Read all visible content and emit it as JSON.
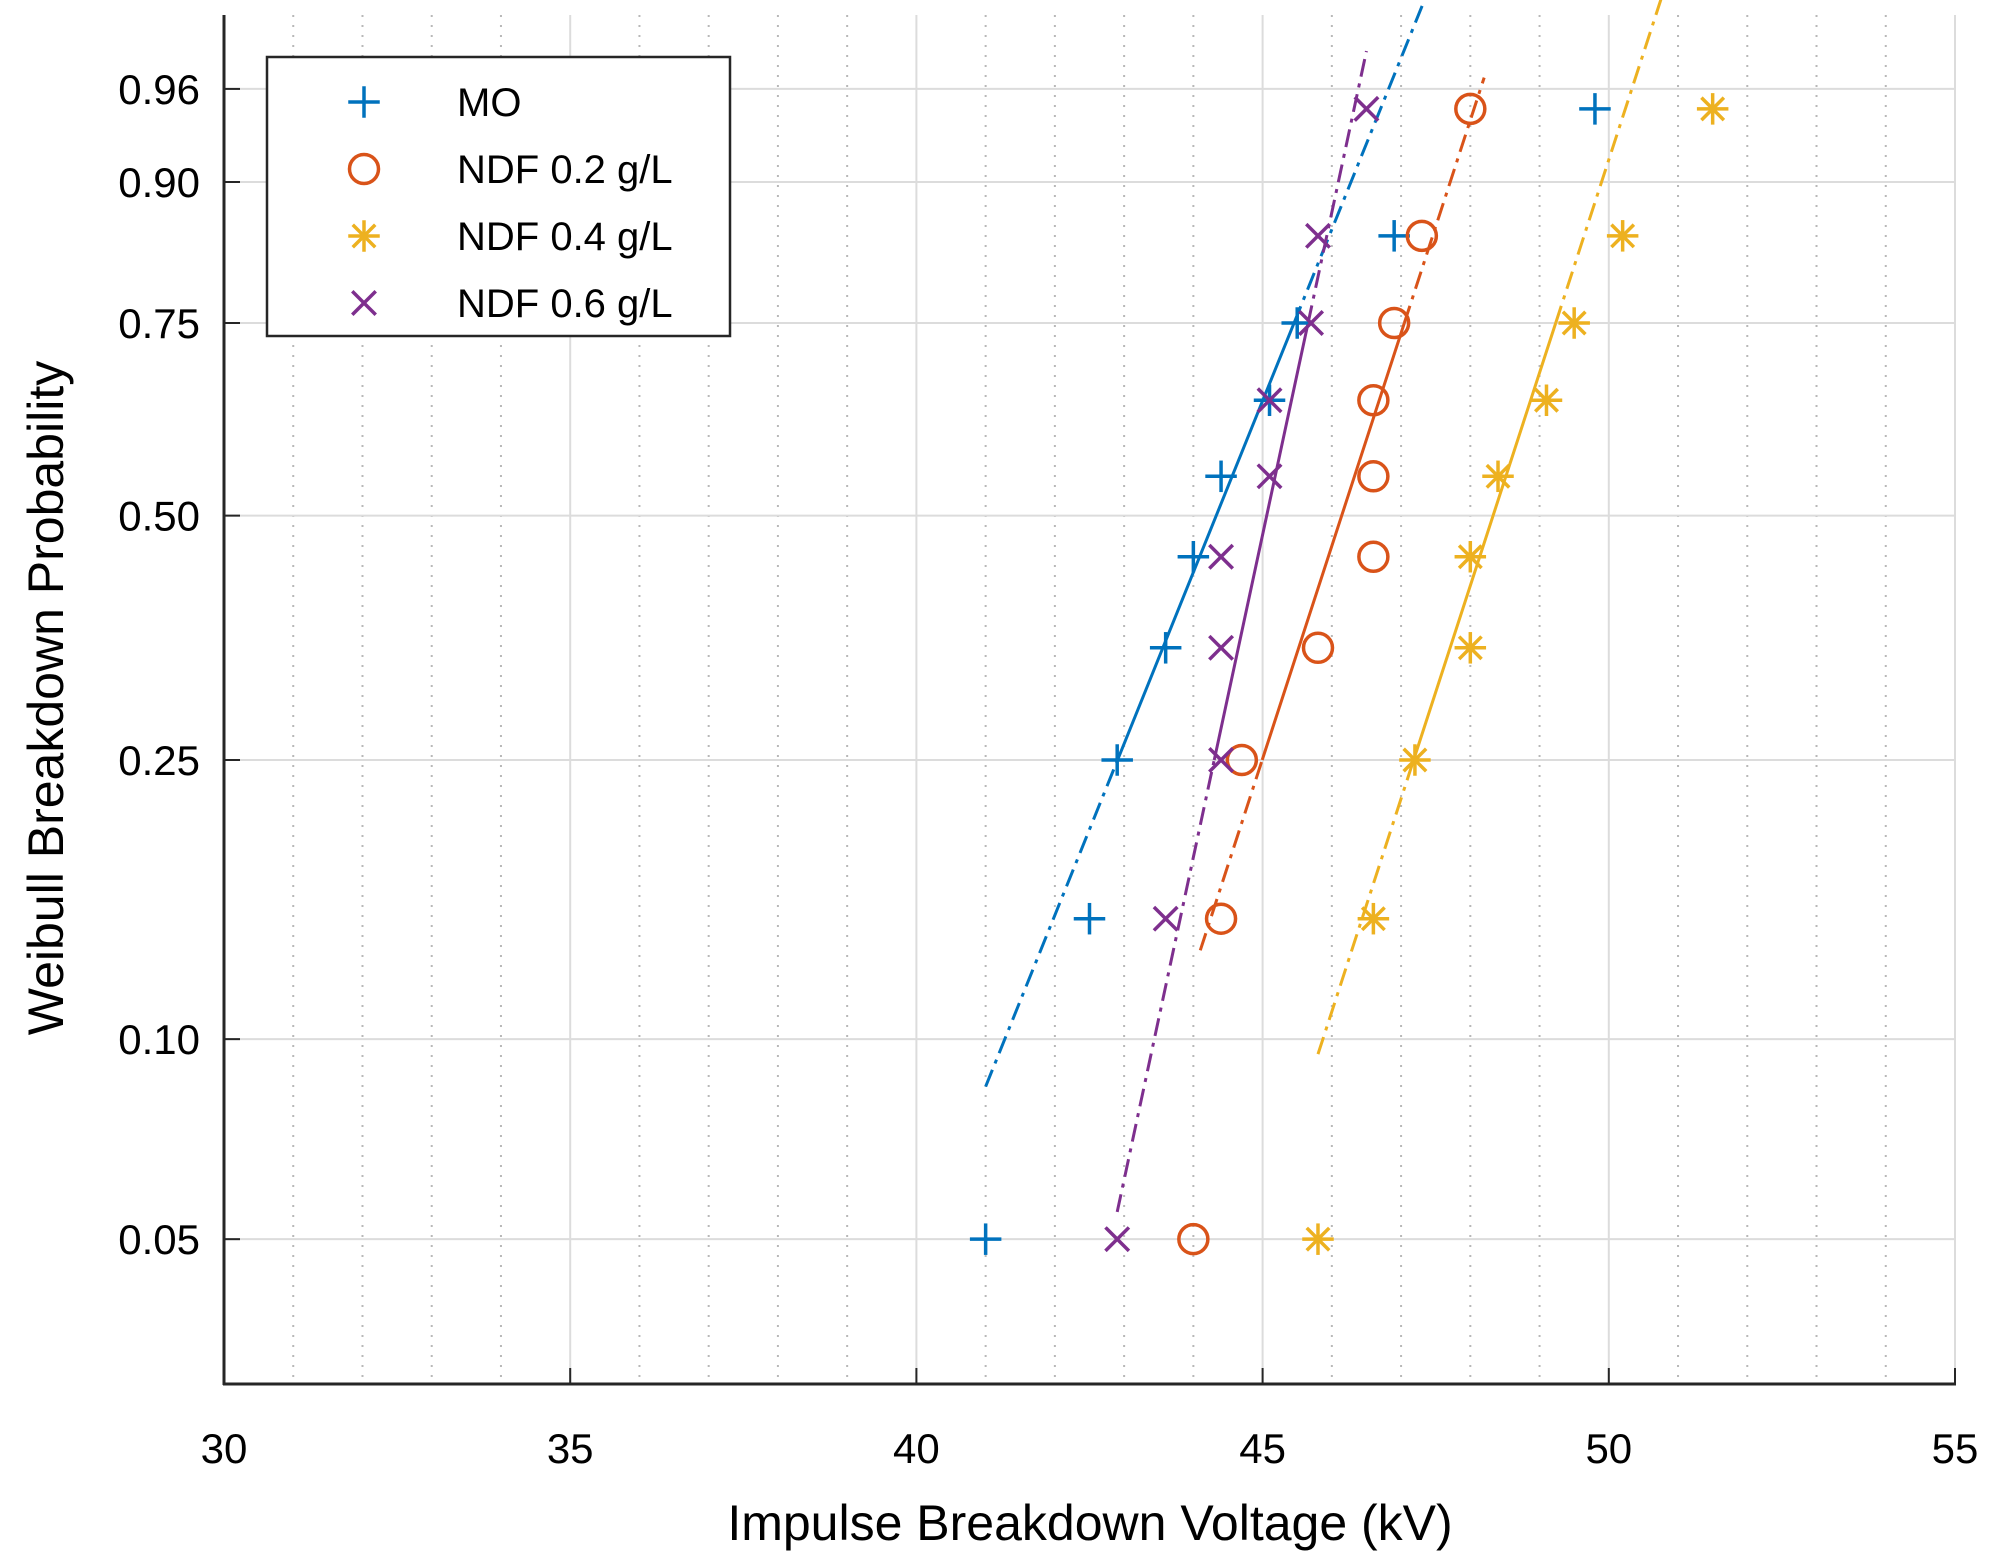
{
  "chart_data": {
    "type": "scatter",
    "title": "",
    "xlabel": "Impulse Breakdown Voltage (kV)",
    "ylabel": "Weibull Breakdown Probability",
    "xlim": [
      30,
      55
    ],
    "x_ticks": [
      30,
      35,
      40,
      45,
      50,
      55
    ],
    "x_minor_grid": [
      31,
      32,
      33,
      34,
      36,
      37,
      38,
      39,
      41,
      42,
      43,
      44,
      46,
      47,
      48,
      49,
      51,
      52,
      53,
      54
    ],
    "y_scale": "weibull",
    "ylim": [
      0.03,
      0.985
    ],
    "y_ticks": [
      0.05,
      0.1,
      0.25,
      0.5,
      0.75,
      0.9,
      0.96
    ],
    "y_tick_labels": [
      "0.05",
      "0.10",
      "0.25",
      "0.50",
      "0.75",
      "0.90",
      "0.96"
    ],
    "grid": true,
    "legend_position": "top-left",
    "series": [
      {
        "name": "MO",
        "color": "#0072BD",
        "marker": "plus",
        "points": [
          [
            41.0,
            0.05
          ],
          [
            42.5,
            0.15
          ],
          [
            42.9,
            0.25
          ],
          [
            43.6,
            0.35
          ],
          [
            44.0,
            0.45
          ],
          [
            44.4,
            0.55
          ],
          [
            45.1,
            0.65
          ],
          [
            45.5,
            0.75
          ],
          [
            46.9,
            0.85
          ],
          [
            49.8,
            0.95
          ]
        ],
        "fit": {
          "x1": 41.0,
          "p1": 0.085,
          "x2": 47.4,
          "p2": 0.99
        }
      },
      {
        "name": "NDF 0.2 g/L",
        "color": "#D95319",
        "marker": "circle",
        "points": [
          [
            44.0,
            0.05
          ],
          [
            44.4,
            0.15
          ],
          [
            44.7,
            0.25
          ],
          [
            45.8,
            0.35
          ],
          [
            46.6,
            0.45
          ],
          [
            46.6,
            0.55
          ],
          [
            46.6,
            0.65
          ],
          [
            46.9,
            0.75
          ],
          [
            47.3,
            0.85
          ],
          [
            48.0,
            0.95
          ]
        ],
        "fit": {
          "x1": 44.1,
          "p1": 0.135,
          "x2": 48.2,
          "p2": 0.965
        }
      },
      {
        "name": "NDF 0.4 g/L",
        "color": "#EDB120",
        "marker": "asterisk",
        "points": [
          [
            45.8,
            0.05
          ],
          [
            46.6,
            0.15
          ],
          [
            47.2,
            0.25
          ],
          [
            48.0,
            0.35
          ],
          [
            48.0,
            0.45
          ],
          [
            48.4,
            0.55
          ],
          [
            49.1,
            0.65
          ],
          [
            49.5,
            0.75
          ],
          [
            50.2,
            0.85
          ],
          [
            51.5,
            0.95
          ]
        ],
        "fit": {
          "x1": 45.8,
          "p1": 0.095,
          "x2": 50.8,
          "p2": 0.99
        }
      },
      {
        "name": "NDF 0.6 g/L",
        "color": "#7E2F8E",
        "marker": "x",
        "points": [
          [
            42.9,
            0.05
          ],
          [
            43.6,
            0.15
          ],
          [
            44.4,
            0.25
          ],
          [
            44.4,
            0.35
          ],
          [
            44.4,
            0.45
          ],
          [
            45.1,
            0.55
          ],
          [
            45.1,
            0.65
          ],
          [
            45.7,
            0.75
          ],
          [
            45.8,
            0.85
          ],
          [
            46.5,
            0.95
          ]
        ],
        "fit": {
          "x1": 42.9,
          "p1": 0.055,
          "x2": 46.5,
          "p2": 0.975
        }
      }
    ]
  }
}
